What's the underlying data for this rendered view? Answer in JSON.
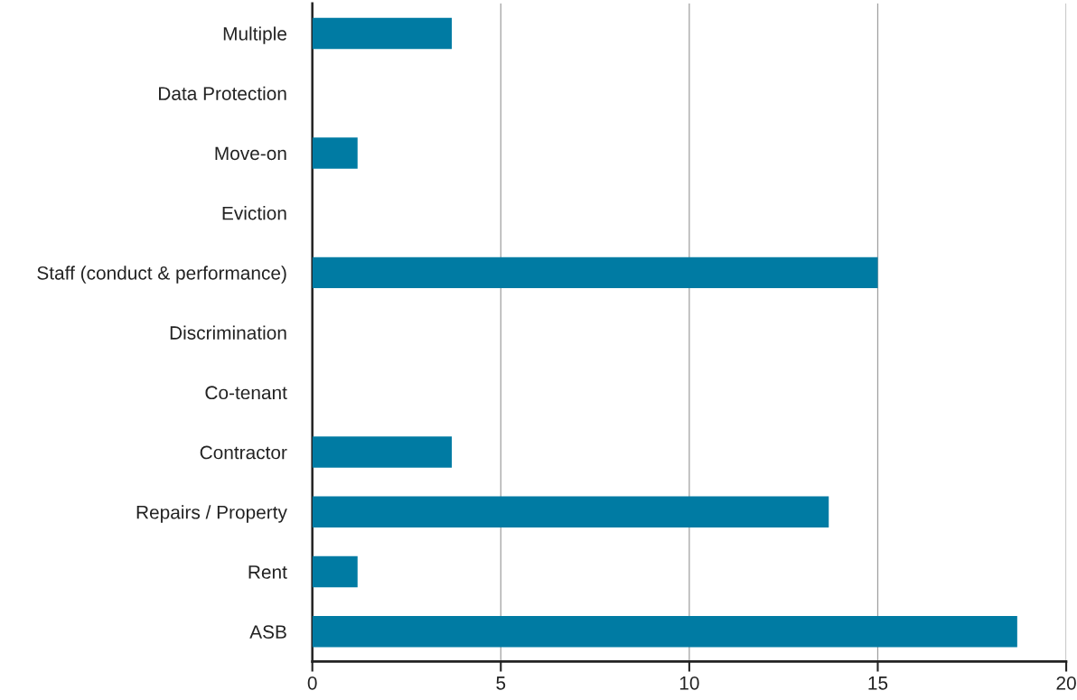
{
  "chart_data": {
    "type": "bar",
    "orientation": "horizontal",
    "categories": [
      "Multiple",
      "Data Protection",
      "Move-on",
      "Eviction",
      "Staff (conduct & performance)",
      "Discrimination",
      "Co-tenant",
      "Contractor",
      "Repairs / Property",
      "Rent",
      "ASB"
    ],
    "values": [
      3.7,
      0,
      1.2,
      0,
      15,
      0,
      0,
      3.7,
      13.7,
      1.2,
      18.7
    ],
    "color": "#007ba3",
    "xlim": [
      0,
      20
    ],
    "xticks": [
      0,
      5,
      10,
      15,
      20
    ],
    "grid": "x"
  }
}
